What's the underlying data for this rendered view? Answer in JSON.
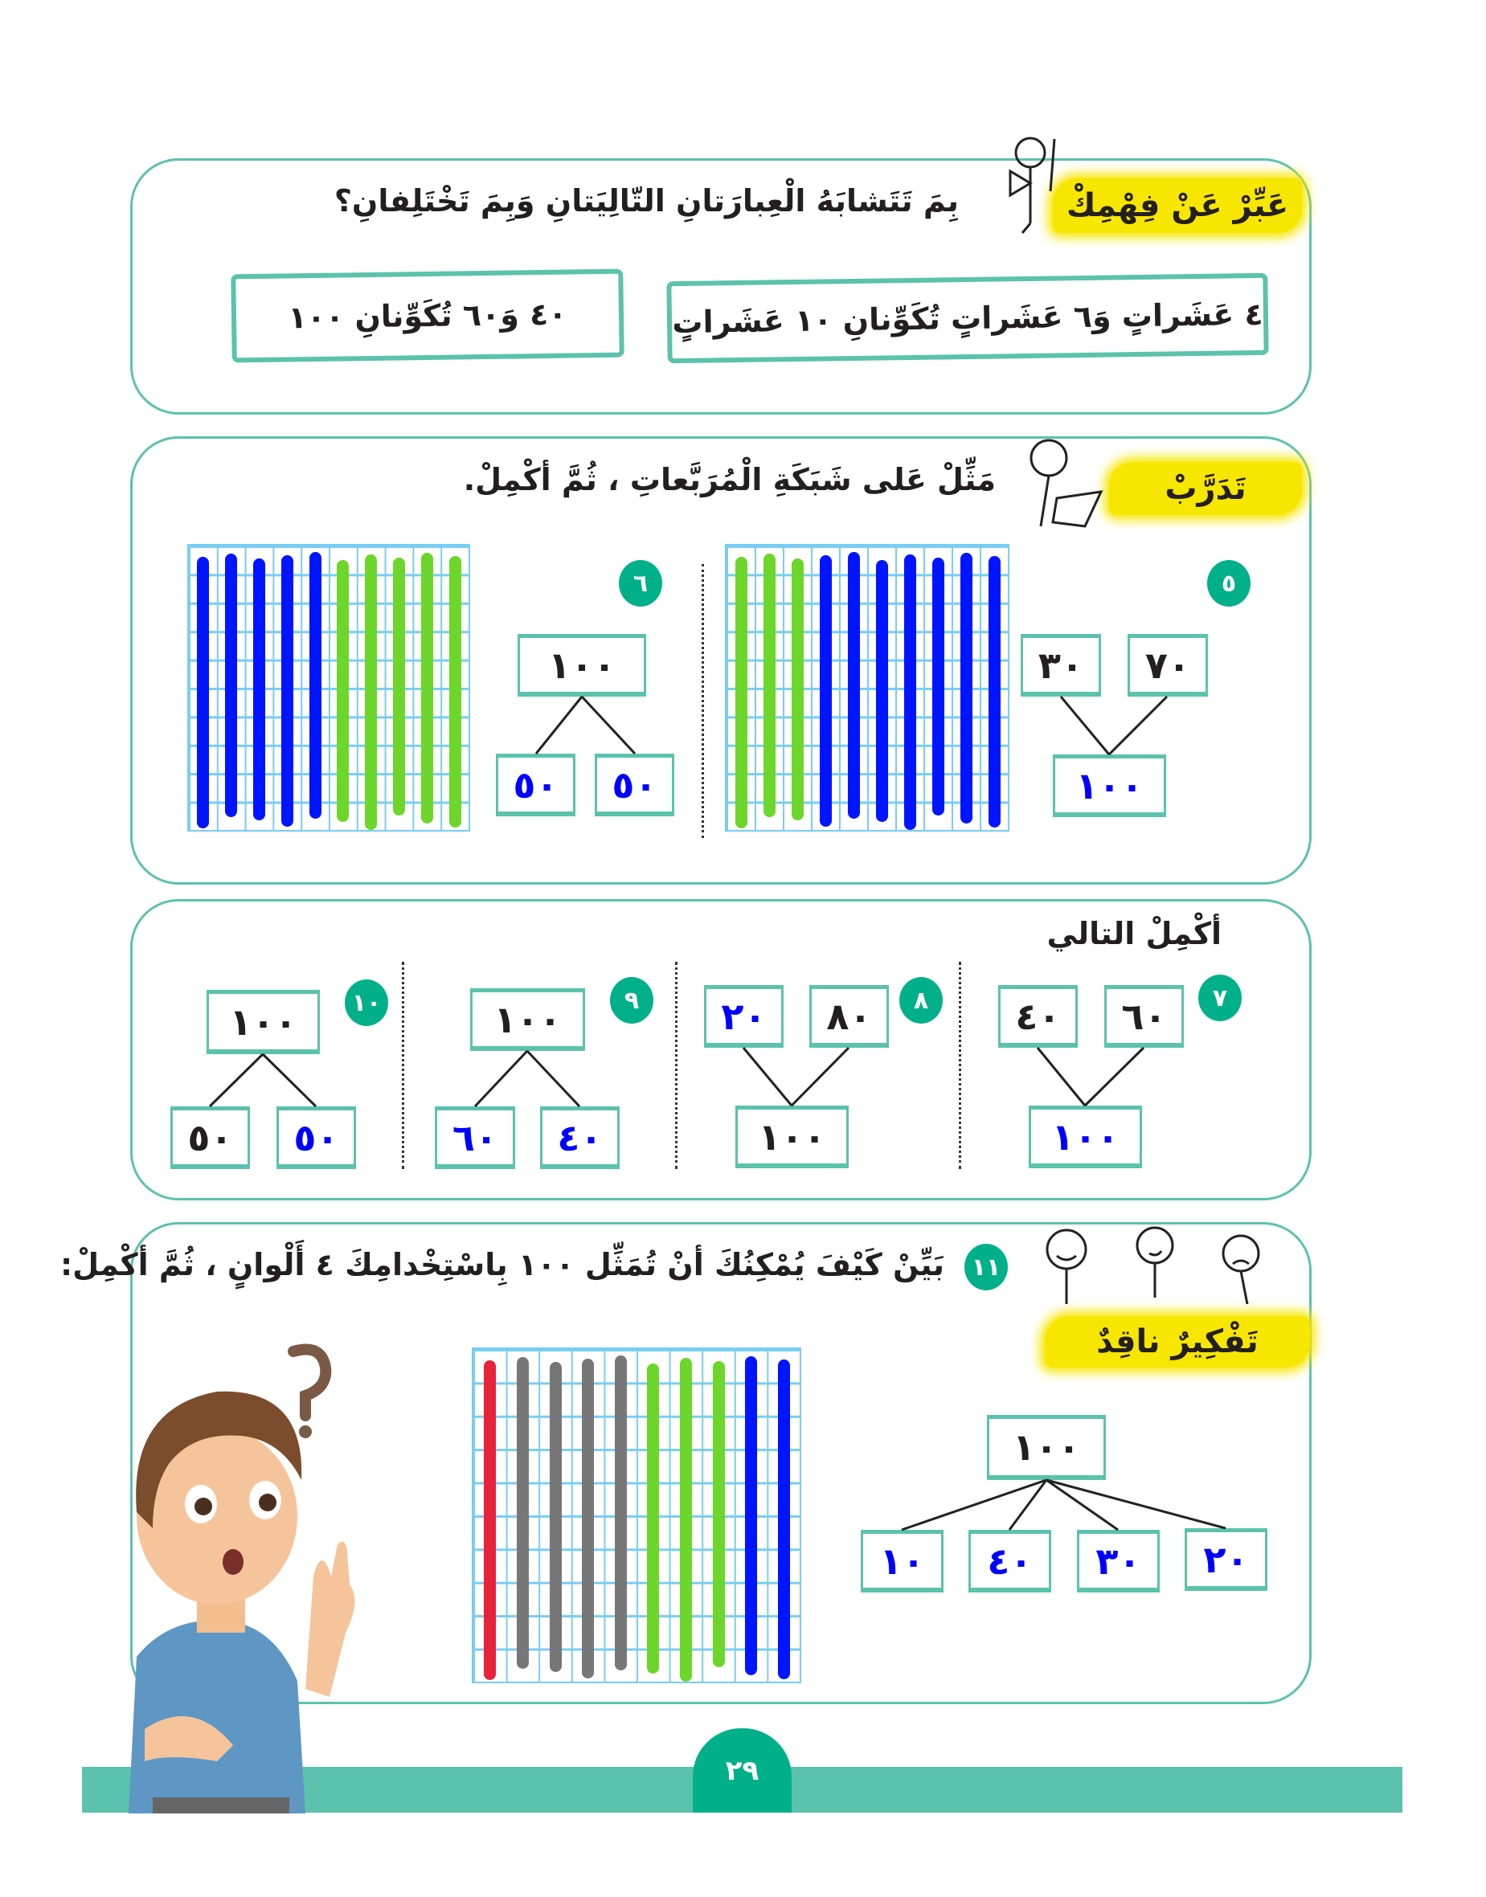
{
  "colors": {
    "teal": "#5bc2ad",
    "badge": "#00b08a",
    "highlight": "#f7e600",
    "blue_bar": "#0015ff",
    "green_bar": "#6dd62a",
    "red_bar": "#e8223a",
    "gray_bar": "#777777",
    "answer_text": "#0000ff"
  },
  "section1": {
    "label": "عَبِّرْ عَنْ فِهْمِكْ",
    "question": "بِمَ تَتَشابَهُ الْعِبارَتانِ التّالِيَتانِ وَبِمَ تَخْتَلِفانِ؟",
    "statement_right": "٤ عَشَراتٍ وَ٦ عَشَراتٍ تُكَوِّنانِ ١٠ عَشَراتٍ",
    "statement_left": "٤٠ وَ٦٠ تُكَوِّنانِ ١٠٠"
  },
  "section2": {
    "label": "تَدَرَّبْ",
    "instruction": "مَثِّلْ عَلى شَبَكَةِ الْمُرَبَّعاتِ ، ثُمَّ أكْمِلْ.",
    "ex5": {
      "number": "٥",
      "part1": "٣٠",
      "part2": "٧٠",
      "whole": "١٠٠",
      "grid_bars": [
        "green",
        "green",
        "green",
        "blue",
        "blue",
        "blue",
        "blue",
        "blue",
        "blue",
        "blue"
      ]
    },
    "ex6": {
      "number": "٦",
      "whole": "١٠٠",
      "part1": "٥٠",
      "part2": "٥٠",
      "grid_bars": [
        "blue",
        "blue",
        "blue",
        "blue",
        "blue",
        "green",
        "green",
        "green",
        "green",
        "green"
      ]
    }
  },
  "section3": {
    "instruction": "أكْمِلْ التالي",
    "ex7": {
      "number": "٧",
      "part1": "٦٠",
      "part2": "٤٠",
      "whole": "١٠٠"
    },
    "ex8": {
      "number": "٨",
      "part1": "٨٠",
      "part2": "٢٠",
      "whole": "١٠٠"
    },
    "ex9": {
      "number": "٩",
      "whole": "١٠٠",
      "part1": "٤٠",
      "part2": "٦٠"
    },
    "ex10": {
      "number": "١٠",
      "whole": "١٠٠",
      "part1": "٥٠",
      "part2": "٥٠"
    }
  },
  "section4": {
    "label": "تَفْكِيرٌ ناقِدٌ",
    "number": "١١",
    "question": "بَيِّنْ كَيْفَ يُمْكِنُكَ أنْ تُمَثِّل ١٠٠ بِاسْتِخْدامِكَ ٤ أَلْوانٍ ، ثُمَّ أكْمِلْ:",
    "whole": "١٠٠",
    "parts": [
      "٢٠",
      "٣٠",
      "٤٠",
      "١٠"
    ],
    "grid_bars": [
      "red",
      "gray",
      "gray",
      "gray",
      "gray",
      "green",
      "green",
      "green",
      "blue",
      "blue"
    ]
  },
  "footer": {
    "page_number": "٢٩"
  }
}
